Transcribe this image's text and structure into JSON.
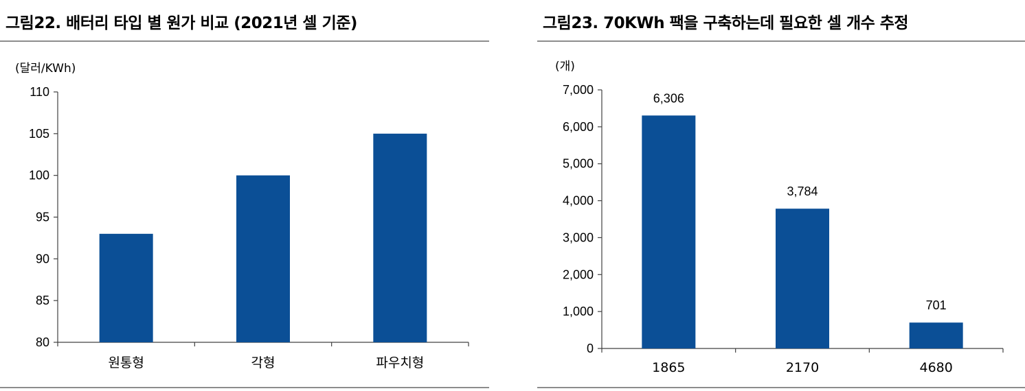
{
  "colors": {
    "bar": "#0b4f96",
    "axis": "#404040",
    "rule": "#8c8c8c"
  },
  "chart_data": [
    {
      "type": "bar",
      "title": "그림22. 배터리 타입 별 원가 비교 (2021년 셀 기준)",
      "unit_label": "(달러/KWh)",
      "categories": [
        "원통형",
        "각형",
        "파우치형"
      ],
      "values": [
        93,
        100,
        105
      ],
      "ylim": [
        80,
        110
      ],
      "yticks": [
        80,
        85,
        90,
        95,
        100,
        105,
        110
      ],
      "ytick_labels": [
        "80",
        "85",
        "90",
        "95",
        "100",
        "105",
        "110"
      ],
      "data_labels": [],
      "xlabel": "",
      "ylabel": "",
      "grid": false,
      "legend": "none"
    },
    {
      "type": "bar",
      "title": "그림23. 70KWh 팩을 구축하는데 필요한 셀 개수 추정",
      "unit_label": "(개)",
      "categories": [
        "1865",
        "2170",
        "4680"
      ],
      "values": [
        6306,
        3784,
        701
      ],
      "ylim": [
        0,
        7000
      ],
      "yticks": [
        0,
        1000,
        2000,
        3000,
        4000,
        5000,
        6000,
        7000
      ],
      "ytick_labels": [
        "0",
        "1,000",
        "2,000",
        "3,000",
        "4,000",
        "5,000",
        "6,000",
        "7,000"
      ],
      "data_labels": [
        "6,306",
        "3,784",
        "701"
      ],
      "xlabel": "",
      "ylabel": "",
      "grid": false,
      "legend": "none"
    }
  ]
}
